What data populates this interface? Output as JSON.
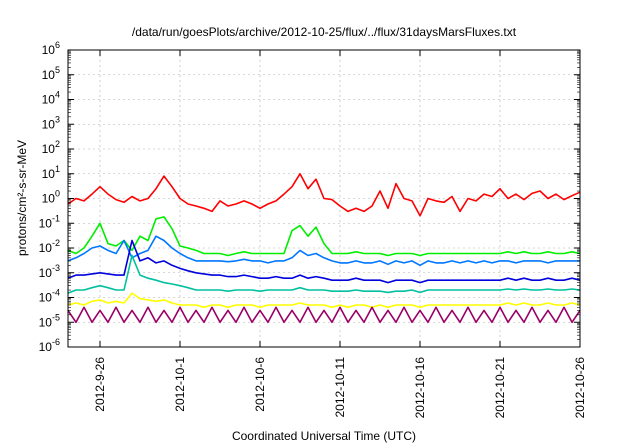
{
  "chart_data": {
    "type": "line",
    "title": "/data/run/goesPlots/archive/2012-10-25/flux/../flux/31daysMarsFluxes.txt",
    "xlabel": "Coordinated Universal Time (UTC)",
    "ylabel": "protons/cm²-s-sr-MeV",
    "yscale": "log",
    "ylim": [
      1e-06,
      1000000.0
    ],
    "xlim": [
      "2012-09-24",
      "2012-10-26"
    ],
    "grid": true,
    "legend": "none",
    "x_tick_labels": [
      "2012-9-26",
      "2012-10-1",
      "2012-10-6",
      "2012-10-11",
      "2012-10-16",
      "2012-10-21",
      "2012-10-26"
    ],
    "x_tick_days": [
      2,
      7,
      12,
      17,
      22,
      27,
      32
    ],
    "y_tick_exponents": [
      -6,
      -5,
      -4,
      -3,
      -2,
      -1,
      0,
      1,
      2,
      3,
      4,
      5,
      6
    ],
    "y_tick_base": "10",
    "series": [
      {
        "color": "#ff0000",
        "day": [
          0,
          0.5,
          1,
          1.5,
          2,
          2.5,
          3,
          3.5,
          4,
          4.5,
          5,
          5.5,
          6,
          6.5,
          7,
          7.5,
          8,
          8.5,
          9,
          9.5,
          10,
          10.5,
          11,
          11.5,
          12,
          12.5,
          13,
          13.5,
          14,
          14.5,
          15,
          15.5,
          16,
          16.5,
          17,
          17.5,
          18,
          18.5,
          19,
          19.5,
          20,
          20.5,
          21,
          21.5,
          22,
          22.5,
          23,
          23.5,
          24,
          24.5,
          25,
          25.5,
          26,
          26.5,
          27,
          27.5,
          28,
          28.5,
          29,
          29.5,
          30,
          30.5,
          31,
          31.5,
          32
        ],
        "values": [
          0.6,
          1.0,
          0.8,
          1.5,
          3.0,
          1.5,
          0.9,
          0.7,
          1.2,
          0.8,
          1.0,
          2.5,
          8.0,
          3.0,
          1.0,
          0.6,
          0.5,
          0.4,
          0.3,
          0.8,
          0.5,
          0.6,
          0.8,
          0.6,
          0.4,
          0.6,
          0.8,
          1.5,
          3.0,
          10.0,
          2.5,
          6.0,
          1.0,
          0.9,
          0.5,
          0.3,
          0.4,
          0.3,
          0.5,
          2.0,
          0.4,
          4.0,
          1.0,
          0.8,
          0.2,
          1.0,
          0.8,
          0.7,
          1.2,
          0.3,
          1.0,
          0.8,
          1.5,
          1.2,
          2.5,
          1.0,
          1.5,
          0.9,
          1.6,
          2.0,
          1.0,
          1.5,
          0.9,
          1.3,
          1.8
        ]
      },
      {
        "color": "#00ee00",
        "day": [
          0,
          0.5,
          1,
          1.5,
          2,
          2.5,
          3,
          3.5,
          4,
          4.5,
          5,
          5.5,
          6,
          6.5,
          7,
          7.5,
          8,
          8.5,
          9,
          9.5,
          10,
          10.5,
          11,
          11.5,
          12,
          12.5,
          13,
          13.5,
          14,
          14.5,
          15,
          15.5,
          16,
          16.5,
          17,
          17.5,
          18,
          18.5,
          19,
          19.5,
          20,
          20.5,
          21,
          21.5,
          22,
          22.5,
          23,
          23.5,
          24,
          24.5,
          25,
          25.5,
          26,
          26.5,
          27,
          27.5,
          28,
          28.5,
          29,
          29.5,
          30,
          30.5,
          31,
          31.5,
          32
        ],
        "values": [
          0.008,
          0.006,
          0.01,
          0.03,
          0.1,
          0.015,
          0.012,
          0.02,
          0.008,
          0.03,
          0.02,
          0.15,
          0.18,
          0.06,
          0.012,
          0.01,
          0.008,
          0.006,
          0.006,
          0.006,
          0.005,
          0.006,
          0.007,
          0.006,
          0.006,
          0.006,
          0.006,
          0.006,
          0.05,
          0.08,
          0.03,
          0.07,
          0.015,
          0.006,
          0.006,
          0.006,
          0.007,
          0.006,
          0.006,
          0.006,
          0.005,
          0.006,
          0.006,
          0.006,
          0.005,
          0.006,
          0.006,
          0.006,
          0.006,
          0.006,
          0.006,
          0.006,
          0.006,
          0.006,
          0.006,
          0.007,
          0.006,
          0.007,
          0.006,
          0.006,
          0.007,
          0.006,
          0.006,
          0.007,
          0.006
        ]
      },
      {
        "color": "#0077ff",
        "day": [
          0,
          0.5,
          1,
          1.5,
          2,
          2.5,
          3,
          3.5,
          4,
          4.5,
          5,
          5.5,
          6,
          6.5,
          7,
          7.5,
          8,
          8.5,
          9,
          9.5,
          10,
          10.5,
          11,
          11.5,
          12,
          12.5,
          13,
          13.5,
          14,
          14.5,
          15,
          15.5,
          16,
          16.5,
          17,
          17.5,
          18,
          18.5,
          19,
          19.5,
          20,
          20.5,
          21,
          21.5,
          22,
          22.5,
          23,
          23.5,
          24,
          24.5,
          25,
          25.5,
          26,
          26.5,
          27,
          27.5,
          28,
          28.5,
          29,
          29.5,
          30,
          30.5,
          31,
          31.5,
          32
        ],
        "values": [
          0.003,
          0.004,
          0.006,
          0.01,
          0.012,
          0.008,
          0.006,
          0.02,
          0.004,
          0.006,
          0.008,
          0.03,
          0.02,
          0.01,
          0.006,
          0.004,
          0.003,
          0.003,
          0.003,
          0.003,
          0.0028,
          0.003,
          0.0035,
          0.003,
          0.003,
          0.0025,
          0.003,
          0.003,
          0.004,
          0.008,
          0.005,
          0.006,
          0.004,
          0.003,
          0.0025,
          0.0025,
          0.003,
          0.0025,
          0.0025,
          0.003,
          0.0022,
          0.003,
          0.0025,
          0.003,
          0.002,
          0.003,
          0.0025,
          0.0025,
          0.003,
          0.0025,
          0.003,
          0.0025,
          0.003,
          0.0025,
          0.003,
          0.003,
          0.0025,
          0.003,
          0.003,
          0.003,
          0.0025,
          0.003,
          0.003,
          0.003,
          0.003
        ]
      },
      {
        "color": "#0000dd",
        "day": [
          0,
          0.5,
          1,
          1.5,
          2,
          2.5,
          3,
          3.5,
          4,
          4.5,
          5,
          5.5,
          6,
          6.5,
          7,
          7.5,
          8,
          8.5,
          9,
          9.5,
          10,
          10.5,
          11,
          11.5,
          12,
          12.5,
          13,
          13.5,
          14,
          14.5,
          15,
          15.5,
          16,
          16.5,
          17,
          17.5,
          18,
          18.5,
          19,
          19.5,
          20,
          20.5,
          21,
          21.5,
          22,
          22.5,
          23,
          23.5,
          24,
          24.5,
          25,
          25.5,
          26,
          26.5,
          27,
          27.5,
          28,
          28.5,
          29,
          29.5,
          30,
          30.5,
          31,
          31.5,
          32
        ],
        "values": [
          0.0006,
          0.0008,
          0.0008,
          0.0009,
          0.001,
          0.0009,
          0.0008,
          0.0008,
          0.02,
          0.003,
          0.004,
          0.0025,
          0.003,
          0.002,
          0.0015,
          0.0012,
          0.001,
          0.0009,
          0.0008,
          0.0008,
          0.0007,
          0.0007,
          0.0008,
          0.0007,
          0.0006,
          0.0006,
          0.0007,
          0.0006,
          0.0006,
          0.0008,
          0.0006,
          0.0007,
          0.0006,
          0.0005,
          0.0005,
          0.0005,
          0.0006,
          0.0005,
          0.0005,
          0.0005,
          0.0004,
          0.0005,
          0.0005,
          0.0005,
          0.0004,
          0.0005,
          0.0005,
          0.0005,
          0.0005,
          0.0005,
          0.0005,
          0.0005,
          0.0005,
          0.0005,
          0.0005,
          0.0006,
          0.0005,
          0.0006,
          0.0005,
          0.0005,
          0.0006,
          0.0005,
          0.0005,
          0.0006,
          0.0005
        ]
      },
      {
        "color": "#00c0a0",
        "day": [
          0,
          0.5,
          1,
          1.5,
          2,
          2.5,
          3,
          3.5,
          4,
          4.5,
          5,
          5.5,
          6,
          6.5,
          7,
          7.5,
          8,
          8.5,
          9,
          9.5,
          10,
          10.5,
          11,
          11.5,
          12,
          12.5,
          13,
          13.5,
          14,
          14.5,
          15,
          15.5,
          16,
          16.5,
          17,
          17.5,
          18,
          18.5,
          19,
          19.5,
          20,
          20.5,
          21,
          21.5,
          22,
          22.5,
          23,
          23.5,
          24,
          24.5,
          25,
          25.5,
          26,
          26.5,
          27,
          27.5,
          28,
          28.5,
          29,
          29.5,
          30,
          30.5,
          31,
          31.5,
          32
        ],
        "values": [
          0.00015,
          0.0002,
          0.0002,
          0.00025,
          0.0003,
          0.00025,
          0.0002,
          0.0002,
          0.005,
          0.0008,
          0.0006,
          0.0005,
          0.0004,
          0.00035,
          0.0003,
          0.00025,
          0.0002,
          0.0002,
          0.0002,
          0.0002,
          0.00018,
          0.0002,
          0.0002,
          0.0002,
          0.00018,
          0.0002,
          0.0002,
          0.0002,
          0.0002,
          0.00025,
          0.0002,
          0.0002,
          0.0002,
          0.00018,
          0.00018,
          0.00018,
          0.0002,
          0.00018,
          0.00018,
          0.00018,
          0.00016,
          0.00018,
          0.00018,
          0.0002,
          0.00016,
          0.0002,
          0.0002,
          0.0002,
          0.0002,
          0.0002,
          0.0002,
          0.0002,
          0.0002,
          0.0002,
          0.0002,
          0.00022,
          0.0002,
          0.00022,
          0.0002,
          0.0002,
          0.00022,
          0.0002,
          0.0002,
          0.00022,
          0.0002
        ]
      },
      {
        "color": "#ffff00",
        "day": [
          0,
          0.5,
          1,
          1.5,
          2,
          2.5,
          3,
          3.5,
          4,
          4.5,
          5,
          5.5,
          6,
          6.5,
          7,
          7.5,
          8,
          8.5,
          9,
          9.5,
          10,
          10.5,
          11,
          11.5,
          12,
          12.5,
          13,
          13.5,
          14,
          14.5,
          15,
          15.5,
          16,
          16.5,
          17,
          17.5,
          18,
          18.5,
          19,
          19.5,
          20,
          20.5,
          21,
          21.5,
          22,
          22.5,
          23,
          23.5,
          24,
          24.5,
          25,
          25.5,
          26,
          26.5,
          27,
          27.5,
          28,
          28.5,
          29,
          29.5,
          30,
          30.5,
          31,
          31.5,
          32
        ],
        "values": [
          5e-05,
          6e-05,
          5e-05,
          7e-05,
          8e-05,
          6e-05,
          7e-05,
          6e-05,
          0.00015,
          9e-05,
          8e-05,
          7e-05,
          8e-05,
          6e-05,
          5e-05,
          5e-05,
          5e-05,
          4e-05,
          5e-05,
          5e-05,
          4e-05,
          5e-05,
          5e-05,
          5e-05,
          4e-05,
          5e-05,
          5e-05,
          5e-05,
          5e-05,
          6e-05,
          5e-05,
          5e-05,
          5e-05,
          4e-05,
          5e-05,
          4e-05,
          5e-05,
          5e-05,
          4e-05,
          5e-05,
          4e-05,
          5e-05,
          5e-05,
          5e-05,
          4e-05,
          5e-05,
          5e-05,
          5e-05,
          5e-05,
          5e-05,
          5e-05,
          5e-05,
          5e-05,
          5e-05,
          5e-05,
          6e-05,
          5e-05,
          6e-05,
          5e-05,
          5e-05,
          6e-05,
          5e-05,
          5e-05,
          6e-05,
          5e-05
        ]
      },
      {
        "color": "#990066",
        "day": [
          0,
          0.5,
          1,
          1.5,
          2,
          2.5,
          3,
          3.5,
          4,
          4.5,
          5,
          5.5,
          6,
          6.5,
          7,
          7.5,
          8,
          8.5,
          9,
          9.5,
          10,
          10.5,
          11,
          11.5,
          12,
          12.5,
          13,
          13.5,
          14,
          14.5,
          15,
          15.5,
          16,
          16.5,
          17,
          17.5,
          18,
          18.5,
          19,
          19.5,
          20,
          20.5,
          21,
          21.5,
          22,
          22.5,
          23,
          23.5,
          24,
          24.5,
          25,
          25.5,
          26,
          26.5,
          27,
          27.5,
          28,
          28.5,
          29,
          29.5,
          30,
          30.5,
          31,
          31.5,
          32
        ],
        "values": [
          3e-05,
          1e-05,
          4e-05,
          1e-05,
          3e-05,
          1e-05,
          4e-05,
          1e-05,
          3e-05,
          1e-05,
          4e-05,
          1e-05,
          3e-05,
          1e-05,
          4e-05,
          1e-05,
          3e-05,
          1e-05,
          4e-05,
          1e-05,
          3e-05,
          1e-05,
          4e-05,
          1e-05,
          3e-05,
          1e-05,
          4e-05,
          1e-05,
          3e-05,
          1e-05,
          4e-05,
          1e-05,
          3e-05,
          1e-05,
          4e-05,
          1e-05,
          3e-05,
          1e-05,
          4e-05,
          1e-05,
          3e-05,
          1e-05,
          4e-05,
          1e-05,
          3e-05,
          1e-05,
          4e-05,
          1e-05,
          3e-05,
          1e-05,
          4e-05,
          1e-05,
          3e-05,
          1e-05,
          4e-05,
          1e-05,
          3e-05,
          1e-05,
          4e-05,
          1e-05,
          3e-05,
          1e-05,
          4e-05,
          1e-05,
          3e-05
        ]
      }
    ]
  }
}
